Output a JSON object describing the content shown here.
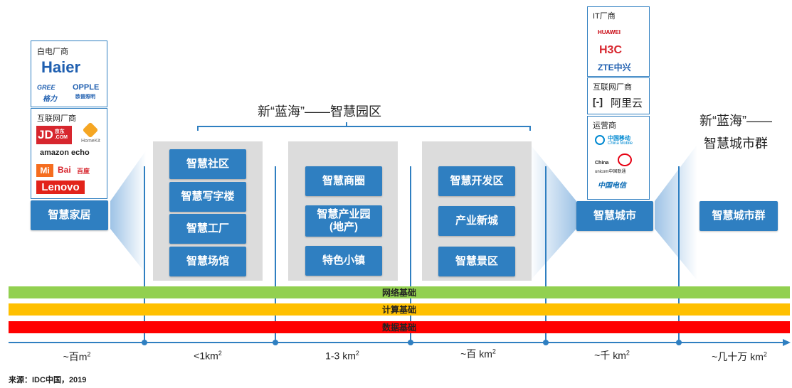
{
  "colors": {
    "accent": "#2f7fc1",
    "network": "#92d050",
    "compute": "#ffc000",
    "data": "#ff0000"
  },
  "vendors": {
    "appliance": {
      "label": "白电厂商",
      "logos": [
        "Haier",
        "GREE",
        "格力",
        "OPPLE",
        "欧普照明"
      ]
    },
    "internet_left": {
      "label": "互联网厂商",
      "logos": [
        "JD",
        "京东",
        ".COM",
        "HomeKit",
        "amazon echo",
        "Mi",
        "Bai",
        "百度",
        "Lenovo"
      ]
    },
    "it": {
      "label": "IT厂商",
      "logos": [
        "HUAWEI",
        "H3C",
        "ZTE中兴"
      ]
    },
    "internet_right": {
      "label": "互联网厂商",
      "logos": [
        "阿里云"
      ]
    },
    "carrier": {
      "label": "运营商",
      "logos": [
        "中国移动",
        "China Mobile",
        "China",
        "unicom中国联通",
        "中国电信"
      ]
    }
  },
  "headings": {
    "park": "新“蓝海”——智慧园区",
    "city_line1": "新“蓝海”——",
    "city_line2": "智慧城市群"
  },
  "nodes": {
    "home": "智慧家居",
    "group1": [
      "智慧社区",
      "智慧写字楼",
      "智慧工厂",
      "智慧场馆"
    ],
    "group2": [
      "智慧商圈",
      "智慧产业园\n(地产)",
      "特色小镇"
    ],
    "group3": [
      "智慧开发区",
      "产业新城",
      "智慧景区"
    ],
    "city": "智慧城市",
    "cluster": "智慧城市群"
  },
  "bars": [
    "网络基础",
    "计算基础",
    "数据基础"
  ],
  "scale": [
    {
      "prefix": "~百m",
      "sup": "2"
    },
    {
      "prefix": "<1km",
      "sup": "2"
    },
    {
      "prefix": "1-3 km",
      "sup": "2"
    },
    {
      "prefix": "~百 km",
      "sup": "2"
    },
    {
      "prefix": "~千 km",
      "sup": "2"
    },
    {
      "prefix": "~几十万 km",
      "sup": "2"
    }
  ],
  "source": "来源：IDC中国，2019"
}
